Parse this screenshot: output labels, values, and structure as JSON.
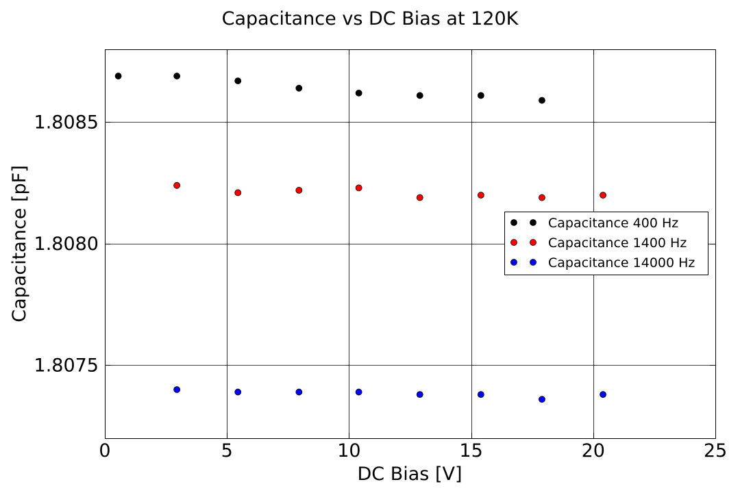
{
  "chart_data": {
    "type": "scatter",
    "title": "Capacitance vs DC Bias at 120K",
    "xlabel": "DC Bias [V]",
    "ylabel": "Capacitance [pF]",
    "xlim": [
      0,
      25
    ],
    "ylim": [
      1.8072,
      1.8088
    ],
    "x_ticks": [
      0,
      5,
      10,
      15,
      20,
      25
    ],
    "x_tick_labels": [
      "0",
      "5",
      "10",
      "15",
      "20",
      "25"
    ],
    "y_ticks": [
      1.8075,
      1.808,
      1.8085
    ],
    "y_tick_labels": [
      "1.8075",
      "1.8080",
      "1.8085"
    ],
    "grid": true,
    "legend_position": "center-right",
    "series": [
      {
        "name": "Capacitance 400 Hz",
        "color": "#000000",
        "x": [
          0.55,
          2.95,
          5.45,
          7.95,
          10.4,
          12.9,
          15.4,
          17.9
        ],
        "y": [
          1.80869,
          1.80869,
          1.80867,
          1.80864,
          1.80862,
          1.80861,
          1.80861,
          1.80859
        ]
      },
      {
        "name": "Capacitance 1400 Hz",
        "color": "#ff0000",
        "x": [
          2.95,
          5.45,
          7.95,
          10.4,
          12.9,
          15.4,
          17.9,
          20.4
        ],
        "y": [
          1.80824,
          1.80821,
          1.80822,
          1.80823,
          1.80819,
          1.8082,
          1.80819,
          1.8082
        ]
      },
      {
        "name": "Capacitance 14000 Hz",
        "color": "#0000ff",
        "x": [
          2.95,
          5.45,
          7.95,
          10.4,
          12.9,
          15.4,
          17.9,
          20.4
        ],
        "y": [
          1.8074,
          1.80739,
          1.80739,
          1.80739,
          1.80738,
          1.80738,
          1.80736,
          1.80738
        ]
      }
    ]
  }
}
